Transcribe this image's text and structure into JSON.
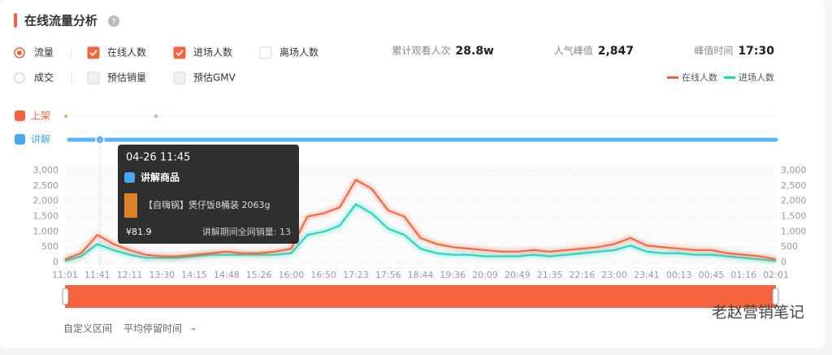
{
  "header": {
    "title": "在线流量分析"
  },
  "controls": {
    "radios": [
      {
        "label": "流量",
        "checked": true
      },
      {
        "label": "成交",
        "checked": false
      }
    ],
    "checkboxes": [
      {
        "label": "在线人数",
        "checked": true
      },
      {
        "label": "进场人数",
        "checked": true
      },
      {
        "label": "离场人数",
        "checked": false
      },
      {
        "label": "预估销量",
        "checked": false
      },
      {
        "label": "预估GMV",
        "checked": false
      }
    ]
  },
  "stats": [
    {
      "label": "累计观看人次",
      "value": "28.8w"
    },
    {
      "label": "人气峰值",
      "value": "2,847"
    },
    {
      "label": "峰值时间",
      "value": "17:30"
    }
  ],
  "events": [
    "上架",
    "讲解"
  ],
  "tooltip": {
    "time": "04-26 11:45",
    "heading": "讲解商品",
    "product": "【自嗨锅】煲仔饭8桶装 2063g",
    "price": "¥81.9",
    "sales": "讲解期间全网销量: 13"
  },
  "footer": {
    "range": "自定义区间",
    "stay_label": "平均停留时间",
    "stay_value": "–"
  },
  "watermark": "老赵营销笔记",
  "chart_data": {
    "type": "line",
    "categories": [
      "11:01",
      null,
      "11:41",
      null,
      "12:11",
      null,
      "13:30",
      null,
      "14:15",
      null,
      "14:48",
      null,
      "15:26",
      null,
      "16:00",
      null,
      "16:50",
      null,
      "17:23",
      null,
      "17:56",
      null,
      "18:44",
      null,
      "19:36",
      null,
      "20:09",
      null,
      "20:49",
      null,
      "21:35",
      null,
      "22:16",
      null,
      "23:00",
      null,
      "23:41",
      null,
      "00:13",
      null,
      "00:45",
      null,
      "01:16",
      null,
      "02:01"
    ],
    "series": [
      {
        "name": "在线人数",
        "color": "#f5633f",
        "values": [
          100,
          300,
          900,
          600,
          400,
          250,
          200,
          200,
          250,
          300,
          350,
          300,
          300,
          350,
          450,
          1500,
          1600,
          1800,
          2700,
          2400,
          1700,
          1500,
          800,
          600,
          500,
          450,
          400,
          350,
          350,
          400,
          350,
          400,
          450,
          500,
          600,
          800,
          550,
          500,
          450,
          400,
          400,
          300,
          250,
          200,
          100
        ]
      },
      {
        "name": "进场人数",
        "color": "#1fd6bd",
        "axis": "y2",
        "values": [
          50,
          200,
          600,
          400,
          250,
          150,
          150,
          150,
          200,
          250,
          250,
          250,
          250,
          250,
          300,
          900,
          1000,
          1200,
          1900,
          1600,
          1100,
          900,
          450,
          300,
          250,
          250,
          200,
          200,
          200,
          250,
          200,
          250,
          300,
          350,
          400,
          550,
          350,
          300,
          300,
          250,
          250,
          200,
          150,
          100,
          50
        ]
      }
    ],
    "ylim": [
      0,
      3000
    ],
    "yticks": [
      0,
      500,
      {
        "value": 1000,
        "label": "1,000"
      },
      {
        "value": 1500,
        "label": "1,500"
      },
      {
        "value": 2000,
        "label": "2,000"
      },
      {
        "value": 2500,
        "label": "2,500"
      },
      {
        "value": 3000,
        "label": "3,000"
      }
    ],
    "y2lim": [
      0,
      3000
    ],
    "y2ticks": [
      0,
      500,
      {
        "value": 1000,
        "label": "1,000"
      },
      {
        "value": 1500,
        "label": "1,500"
      },
      {
        "value": 2000,
        "label": "2,000"
      },
      {
        "value": 2500,
        "label": "2,500"
      },
      {
        "value": 3000,
        "label": "3,000"
      }
    ],
    "grid": true
  }
}
